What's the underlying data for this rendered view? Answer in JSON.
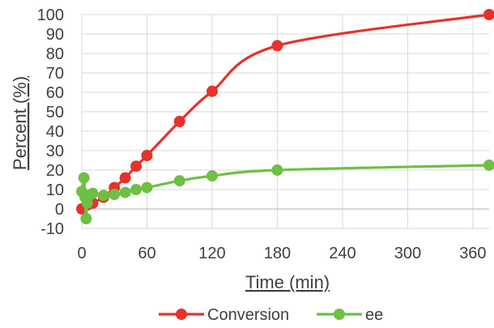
{
  "chart_data": {
    "type": "line",
    "title": "",
    "xlabel": "Time (min)",
    "ylabel": "Percent (%)",
    "xlim": [
      0,
      375
    ],
    "ylim": [
      -10,
      100
    ],
    "x_ticks": [
      0,
      60,
      120,
      180,
      240,
      300,
      360
    ],
    "y_ticks": [
      -10,
      0,
      10,
      20,
      30,
      40,
      50,
      60,
      70,
      80,
      90,
      100
    ],
    "grid": true,
    "legend_position": "bottom",
    "series": [
      {
        "name": "Conversion",
        "color": "#e8312a",
        "points": [
          {
            "x": 0,
            "y": 0
          },
          {
            "x": 5,
            "y": 2
          },
          {
            "x": 10,
            "y": 3
          },
          {
            "x": 20,
            "y": 6
          },
          {
            "x": 30,
            "y": 11
          },
          {
            "x": 40,
            "y": 16
          },
          {
            "x": 50,
            "y": 22
          },
          {
            "x": 60,
            "y": 27.5
          },
          {
            "x": 90,
            "y": 45
          },
          {
            "x": 120,
            "y": 60.5
          },
          {
            "x": 180,
            "y": 84
          },
          {
            "x": 375,
            "y": 100
          }
        ]
      },
      {
        "name": "ee",
        "color": "#6fbf44",
        "points": [
          {
            "x": 0,
            "y": 9
          },
          {
            "x": 2,
            "y": 16
          },
          {
            "x": 3,
            "y": 6
          },
          {
            "x": 4,
            "y": -5
          },
          {
            "x": 5,
            "y": 3
          },
          {
            "x": 7,
            "y": 7
          },
          {
            "x": 10,
            "y": 8
          },
          {
            "x": 20,
            "y": 7
          },
          {
            "x": 30,
            "y": 7.5
          },
          {
            "x": 40,
            "y": 8.5
          },
          {
            "x": 50,
            "y": 10
          },
          {
            "x": 60,
            "y": 11
          },
          {
            "x": 90,
            "y": 14.5
          },
          {
            "x": 120,
            "y": 17
          },
          {
            "x": 180,
            "y": 20
          },
          {
            "x": 375,
            "y": 22.5
          }
        ]
      }
    ]
  }
}
